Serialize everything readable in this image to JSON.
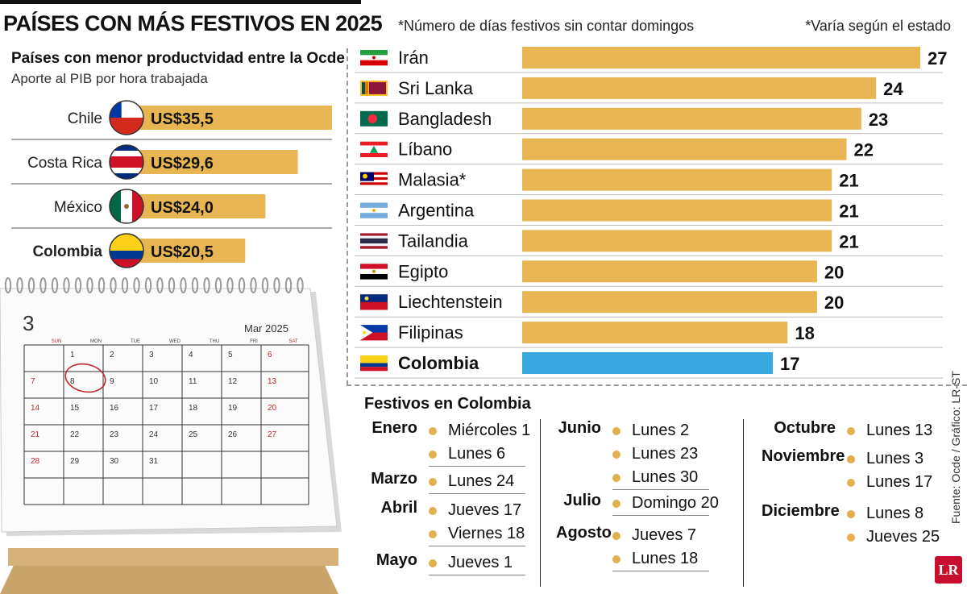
{
  "header": {
    "title": "PAÍSES CON MÁS FESTIVOS EN 2025",
    "note_left": "*Número de días festivos sin contar domingos",
    "note_right": "*Varía según el estado"
  },
  "productivity": {
    "title": "Países con menor productvidad entre la Ocde",
    "subtitle": "Aporte al PIB por hora trabajada",
    "items": [
      {
        "country": "Chile",
        "label": "US$35,5",
        "value": 35.5,
        "flag": "chile"
      },
      {
        "country": "Costa Rica",
        "label": "US$29,6",
        "value": 29.6,
        "flag": "costa-rica"
      },
      {
        "country": "México",
        "label": "US$24,0",
        "value": 24.0,
        "flag": "mexico"
      },
      {
        "country": "Colombia",
        "label": "US$20,5",
        "value": 20.5,
        "flag": "colombia"
      }
    ]
  },
  "chart_data": {
    "type": "bar",
    "orientation": "horizontal",
    "categories": [
      "Irán",
      "Sri Lanka",
      "Bangladesh",
      "Líbano",
      "Malasia*",
      "Argentina",
      "Tailandia",
      "Egipto",
      "Liechtenstein",
      "Filipinas",
      "Colombia"
    ],
    "values": [
      27,
      24,
      23,
      22,
      21,
      21,
      21,
      20,
      20,
      18,
      17
    ],
    "colors": {
      "default": "#e8b553",
      "highlight": "#3aa9e0"
    },
    "highlight": "Colombia",
    "flags": [
      "iran",
      "sri-lanka",
      "bangladesh",
      "lebanon",
      "malaysia",
      "argentina",
      "thailand",
      "egypt",
      "liechtenstein",
      "philippines",
      "colombia"
    ]
  },
  "calendar": {
    "number": "3",
    "month": "Mar 2025",
    "days_header": [
      "SUN",
      "MON",
      "TUE",
      "WED",
      "THU",
      "FRI",
      "SAT"
    ],
    "weeks": [
      [
        "",
        "1",
        "2",
        "3",
        "4",
        "5",
        "6"
      ],
      [
        "7",
        "8",
        "9",
        "10",
        "11",
        "12",
        "13"
      ],
      [
        "14",
        "15",
        "16",
        "17",
        "18",
        "19",
        "20"
      ],
      [
        "21",
        "22",
        "23",
        "24",
        "25",
        "26",
        "27"
      ],
      [
        "28",
        "29",
        "30",
        "31",
        "",
        "",
        ""
      ],
      [
        "",
        "",
        "",
        "",
        "",
        "",
        ""
      ]
    ],
    "circled_day": "8"
  },
  "holidays": {
    "title": "Festivos en Colombia",
    "columns": [
      [
        {
          "month": "Enero",
          "days": [
            "Miércoles 1",
            "Lunes 6"
          ]
        },
        {
          "month": "Marzo",
          "days": [
            "Lunes 24"
          ]
        },
        {
          "month": "Abril",
          "days": [
            "Jueves 17",
            "Viernes 18"
          ]
        },
        {
          "month": "Mayo",
          "days": [
            "Jueves 1"
          ]
        }
      ],
      [
        {
          "month": "Junio",
          "days": [
            "Lunes 2",
            "Lunes 23",
            "Lunes 30"
          ]
        },
        {
          "month": "Julio",
          "days": [
            "Domingo 20"
          ]
        },
        {
          "month": "Agosto",
          "days": [
            "Jueves 7",
            "Lunes 18"
          ]
        }
      ],
      [
        {
          "month": "Octubre",
          "days": [
            "Lunes 13"
          ]
        },
        {
          "month": "Noviembre",
          "days": [
            "Lunes 3",
            "Lunes 17"
          ]
        },
        {
          "month": "Diciembre",
          "days": [
            "Lunes 8",
            "Jueves 25"
          ]
        }
      ]
    ]
  },
  "footer": {
    "source": "Fuente: Ocde / Gráfico: LR-ST",
    "logo": "LR"
  }
}
